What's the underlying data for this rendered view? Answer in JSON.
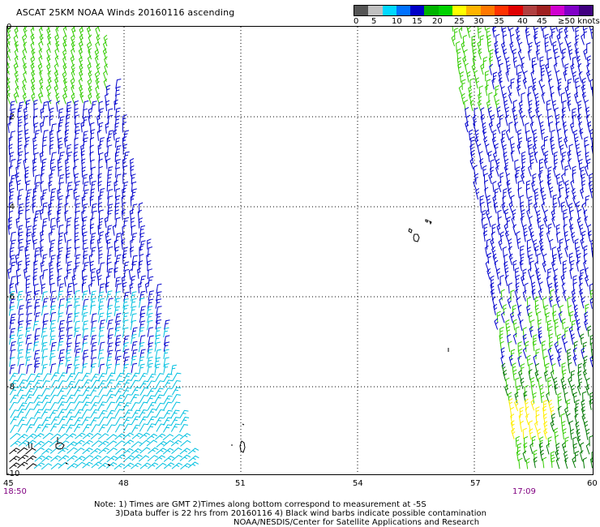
{
  "title": "ASCAT 25KM NOAA Winds 20160116 ascending",
  "legend": {
    "colors": [
      "#555555",
      "#c0c0c0",
      "#00d8ff",
      "#0072ff",
      "#0000c8",
      "#00b400",
      "#00d200",
      "#ffff00",
      "#ffb400",
      "#ff7800",
      "#ff3200",
      "#e00000",
      "#b04040",
      "#a02020",
      "#d000d0",
      "#8000c8",
      "#400080"
    ],
    "labels": [
      "0",
      "5",
      "10",
      "15",
      "20",
      "25",
      "30",
      "35",
      "40",
      "45",
      "≥50 knots"
    ]
  },
  "axes": {
    "x_labels": [
      "45",
      "48",
      "51",
      "54",
      "57",
      "60"
    ],
    "y_labels": [
      "0",
      "-2",
      "-4",
      "-6",
      "-8",
      "-10"
    ]
  },
  "times": {
    "left": "18:50",
    "right": "17:09"
  },
  "notes": {
    "line1": "Note: 1) Times are GMT 2)Times along bottom correspond to measurement at -5S",
    "line2": "3)Data buffer is 22 hrs from 20160116 4) Black wind barbs indicate possible contamination",
    "line3": "NOAA/NESDIS/Center for Satellite Applications and Research"
  },
  "wind_colors": {
    "green": "#33cc00",
    "blue": "#0000cc",
    "cyan": "#00c0e0",
    "dark_green": "#007700",
    "yellow": "#ffee00",
    "black": "#000000"
  }
}
